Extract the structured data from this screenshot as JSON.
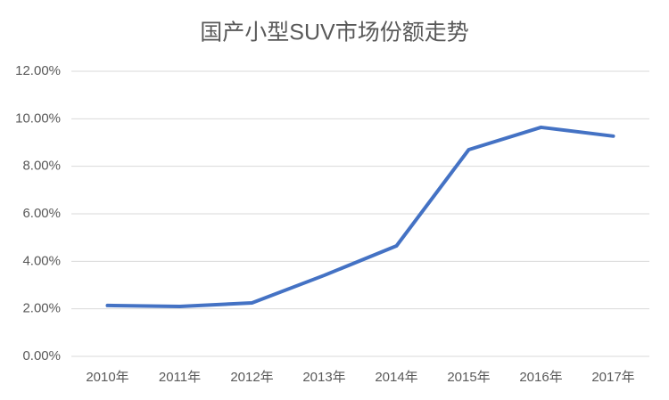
{
  "chart_data": {
    "type": "line",
    "title": "国产小型SUV市场份额走势",
    "categories": [
      "2010年",
      "2011年",
      "2012年",
      "2013年",
      "2014年",
      "2015年",
      "2016年",
      "2017年"
    ],
    "values": [
      2.14,
      2.1,
      2.25,
      3.41,
      4.65,
      8.7,
      9.64,
      9.27
    ],
    "color": "#4472c4",
    "ylim": [
      0,
      12
    ],
    "yticks": [
      {
        "value": 0,
        "label": "0.00%"
      },
      {
        "value": 2,
        "label": "2.00%"
      },
      {
        "value": 4,
        "label": "4.00%"
      },
      {
        "value": 6,
        "label": "6.00%"
      },
      {
        "value": 8,
        "label": "8.00%"
      },
      {
        "value": 10,
        "label": "10.00%"
      },
      {
        "value": 12,
        "label": "12.00%"
      }
    ],
    "grid": true
  }
}
